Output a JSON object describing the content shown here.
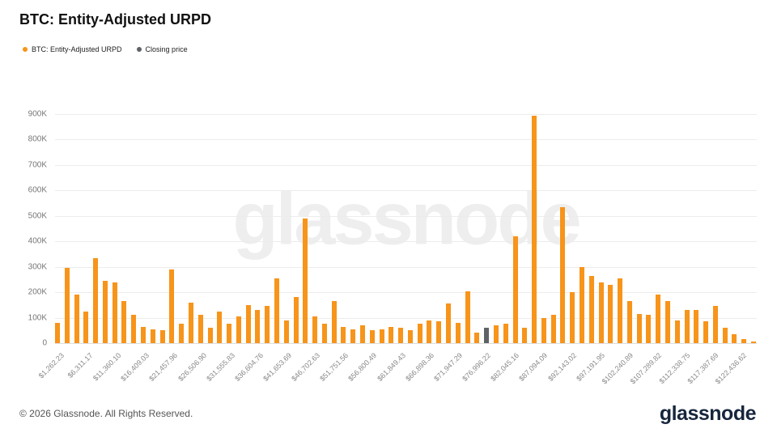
{
  "page": {
    "title": "BTC: Entity-Adjusted URPD",
    "watermark": "glassnode",
    "footer": {
      "copyright": "© 2026 Glassnode. All Rights Reserved.",
      "brand": "glassnode"
    }
  },
  "legend": [
    {
      "label": "BTC: Entity-Adjusted URPD",
      "color": "#f7941a"
    },
    {
      "label": "Closing price",
      "color": "#5f6368"
    }
  ],
  "chart_data": {
    "type": "bar",
    "title": "BTC: Entity-Adjusted URPD",
    "xlabel": "",
    "ylabel": "",
    "ylim": [
      0,
      900000
    ],
    "y_ticks": [
      "0",
      "100K",
      "200K",
      "300K",
      "400K",
      "500K",
      "600K",
      "700K",
      "800K",
      "900K"
    ],
    "y_tick_step": 100000,
    "grid": "horizontal",
    "legend_position": "top-left",
    "x_tick_every": 3,
    "x_tick_labels": [
      "$1,262.23",
      "$6,311.17",
      "$11,360.10",
      "$16,409.03",
      "$21,457.96",
      "$26,506.90",
      "$31,555.83",
      "$36,604.76",
      "$41,653.69",
      "$46,702.63",
      "$51,751.56",
      "$56,800.49",
      "$61,849.43",
      "$66,898.36",
      "$71,947.29",
      "$76,996.22",
      "$82,045.16",
      "$87,094.09",
      "$92,143.02",
      "$97,191.95",
      "$102,240.89",
      "$107,289.82",
      "$112,338.75",
      "$117,387.69",
      "$122,436.62"
    ],
    "values": [
      80000,
      295000,
      190000,
      125000,
      335000,
      245000,
      240000,
      165000,
      110000,
      65000,
      55000,
      50000,
      290000,
      75000,
      160000,
      110000,
      60000,
      125000,
      75000,
      105000,
      150000,
      130000,
      145000,
      255000,
      90000,
      180000,
      490000,
      105000,
      75000,
      165000,
      65000,
      55000,
      70000,
      50000,
      55000,
      65000,
      60000,
      50000,
      75000,
      90000,
      85000,
      155000,
      80000,
      205000,
      40000,
      60000,
      70000,
      75000,
      420000,
      60000,
      895000,
      100000,
      110000,
      535000,
      200000,
      300000,
      265000,
      240000,
      230000,
      255000,
      165000,
      115000,
      110000,
      190000,
      165000,
      90000,
      130000,
      130000,
      85000,
      145000,
      60000,
      35000,
      15000,
      5000
    ],
    "closing_price_bar_index": 45,
    "bar_color": "#f7941a",
    "closing_bar_color": "#5f6368"
  }
}
